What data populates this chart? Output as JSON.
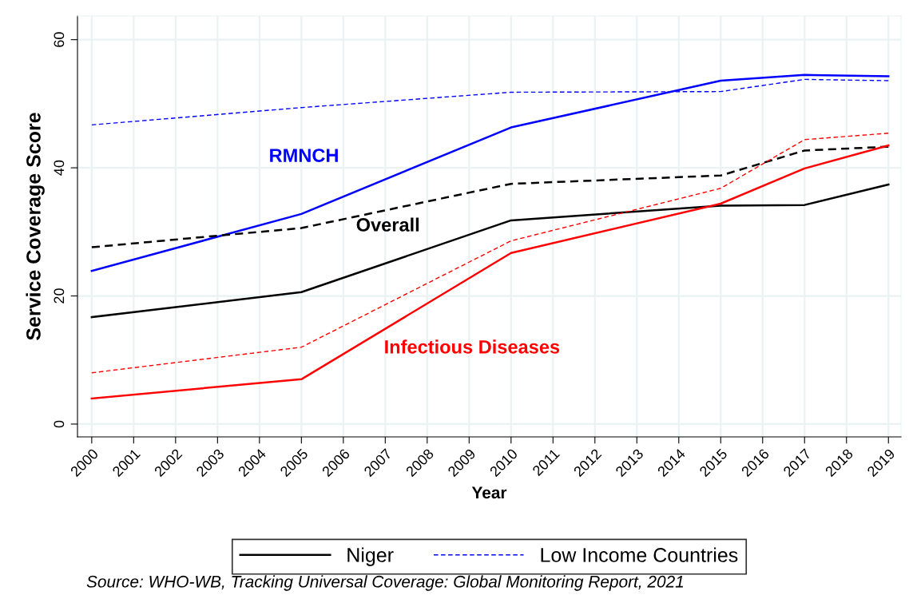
{
  "chart_data": {
    "type": "line",
    "xlabel": "Year",
    "ylabel": "Service Coverage Score",
    "x": [
      2000,
      2005,
      2010,
      2015,
      2017,
      2019
    ],
    "xlim": [
      1999.66,
      2019.3
    ],
    "xticks": [
      2000,
      2001,
      2002,
      2003,
      2004,
      2005,
      2006,
      2007,
      2008,
      2009,
      2010,
      2011,
      2012,
      2013,
      2014,
      2015,
      2016,
      2017,
      2018,
      2019
    ],
    "ylim": [
      -2,
      63.7
    ],
    "yticks": [
      0,
      20,
      40,
      60
    ],
    "grid": true,
    "legend": "bottom",
    "marker": "none",
    "series": [
      {
        "name": "Niger",
        "color": "#000000",
        "line_style": "solid",
        "values": [
          16.7,
          20.6,
          31.8,
          34.1,
          34.2,
          37.4
        ]
      },
      {
        "name": "Low Income Countries",
        "color": "#0000ff",
        "line_style": "dashed",
        "values": [
          46.7,
          49.4,
          51.8,
          51.9,
          53.8,
          53.6
        ]
      },
      {
        "color": "#0000ff",
        "line_style": "solid",
        "values": [
          23.9,
          32.8,
          46.3,
          53.6,
          54.5,
          54.3
        ]
      },
      {
        "color": "#000000",
        "line_style": "dashed",
        "values": [
          27.6,
          30.6,
          37.5,
          38.8,
          42.7,
          43.3
        ]
      },
      {
        "color": "#ff0000",
        "line_style": "solid",
        "values": [
          4.0,
          7.0,
          26.7,
          34.4,
          39.9,
          43.5
        ]
      },
      {
        "color": "#ff0000",
        "line_style": "dashed",
        "values": [
          8.0,
          12.0,
          28.6,
          36.8,
          44.4,
          45.4
        ]
      }
    ],
    "annotations": [
      "RMNCH",
      "Overall",
      "Infectious Diseases",
      "Source: WHO-WB, Tracking Universal Coverage: Global Monitoring Report, 2021"
    ]
  }
}
